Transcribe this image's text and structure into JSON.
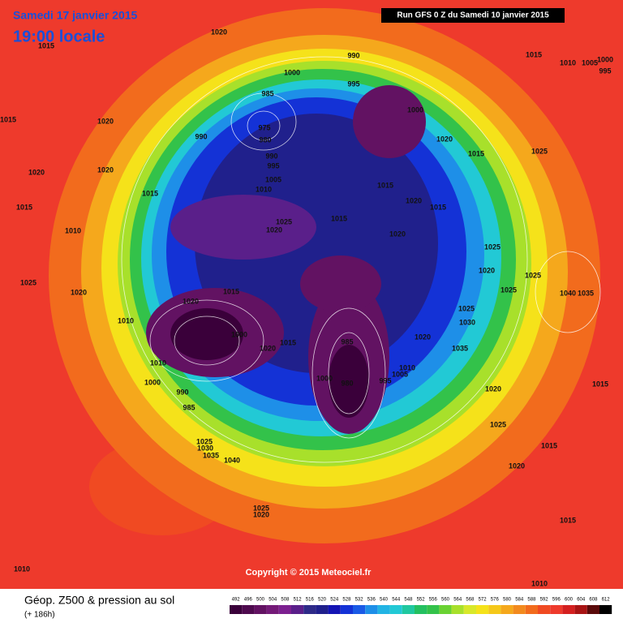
{
  "header": {
    "date": "Samedi 17 janvier 2015",
    "time": "19:00 locale",
    "run": "Run GFS 0 Z du Samedi 10 janvier 2015"
  },
  "map": {
    "copyright": "Copyright © 2015 Meteociel.fr",
    "isobar_labels": [
      "1020",
      "1015",
      "990",
      "1000",
      "995",
      "985",
      "1000",
      "975",
      "980",
      "990",
      "1020",
      "1015",
      "1025",
      "990",
      "995",
      "1005",
      "1010",
      "1015",
      "1015",
      "1020",
      "1015",
      "1025",
      "1020",
      "1015",
      "1020",
      "1025",
      "1020",
      "1025",
      "1025",
      "1040",
      "1035",
      "1015",
      "1020",
      "1025",
      "1030",
      "1010",
      "1000",
      "1020",
      "1015",
      "1020",
      "1035",
      "985",
      "1010",
      "1005",
      "995",
      "1000",
      "980",
      "1015",
      "1020",
      "1025",
      "1015",
      "1020",
      "1015",
      "1010",
      "985",
      "1000",
      "990",
      "1010",
      "1025",
      "1030",
      "1035",
      "1040",
      "1025",
      "1020",
      "1010",
      "1020",
      "1015",
      "1020",
      "1020",
      "1015",
      "1010",
      "1025",
      "1020",
      "1015",
      "1010",
      "1005",
      "1000",
      "995"
    ]
  },
  "footer": {
    "title": "Géop. Z500 & pression au sol",
    "lead": "(+ 186h)"
  },
  "legend": {
    "items": [
      {
        "value": 492,
        "color": "#3a003a"
      },
      {
        "value": 496,
        "color": "#4e0a4e"
      },
      {
        "value": 500,
        "color": "#621262"
      },
      {
        "value": 504,
        "color": "#741a78"
      },
      {
        "value": 508,
        "color": "#7c2090"
      },
      {
        "value": 512,
        "color": "#5a1f8a"
      },
      {
        "value": 516,
        "color": "#2e2a88"
      },
      {
        "value": 520,
        "color": "#20208c"
      },
      {
        "value": 524,
        "color": "#1414b4"
      },
      {
        "value": 528,
        "color": "#1432d6"
      },
      {
        "value": 532,
        "color": "#1a5ae6"
      },
      {
        "value": 536,
        "color": "#1e8fe8"
      },
      {
        "value": 540,
        "color": "#22b4e4"
      },
      {
        "value": 544,
        "color": "#22c9d5"
      },
      {
        "value": 548,
        "color": "#20c8a0"
      },
      {
        "value": 552,
        "color": "#24c060"
      },
      {
        "value": 556,
        "color": "#33c24a"
      },
      {
        "value": 560,
        "color": "#6ad232"
      },
      {
        "value": 564,
        "color": "#a8e02b"
      },
      {
        "value": 568,
        "color": "#d8e82a"
      },
      {
        "value": 572,
        "color": "#f5e21a"
      },
      {
        "value": 576,
        "color": "#f5c81a"
      },
      {
        "value": 580,
        "color": "#f5a81c"
      },
      {
        "value": 584,
        "color": "#f28a1e"
      },
      {
        "value": 588,
        "color": "#f26b1d"
      },
      {
        "value": 592,
        "color": "#f04a22"
      },
      {
        "value": 596,
        "color": "#ee3a2c"
      },
      {
        "value": 600,
        "color": "#d42020"
      },
      {
        "value": 604,
        "color": "#a81414"
      },
      {
        "value": 608,
        "color": "#5a0a0a"
      },
      {
        "value": 612,
        "color": "#000000"
      }
    ]
  }
}
